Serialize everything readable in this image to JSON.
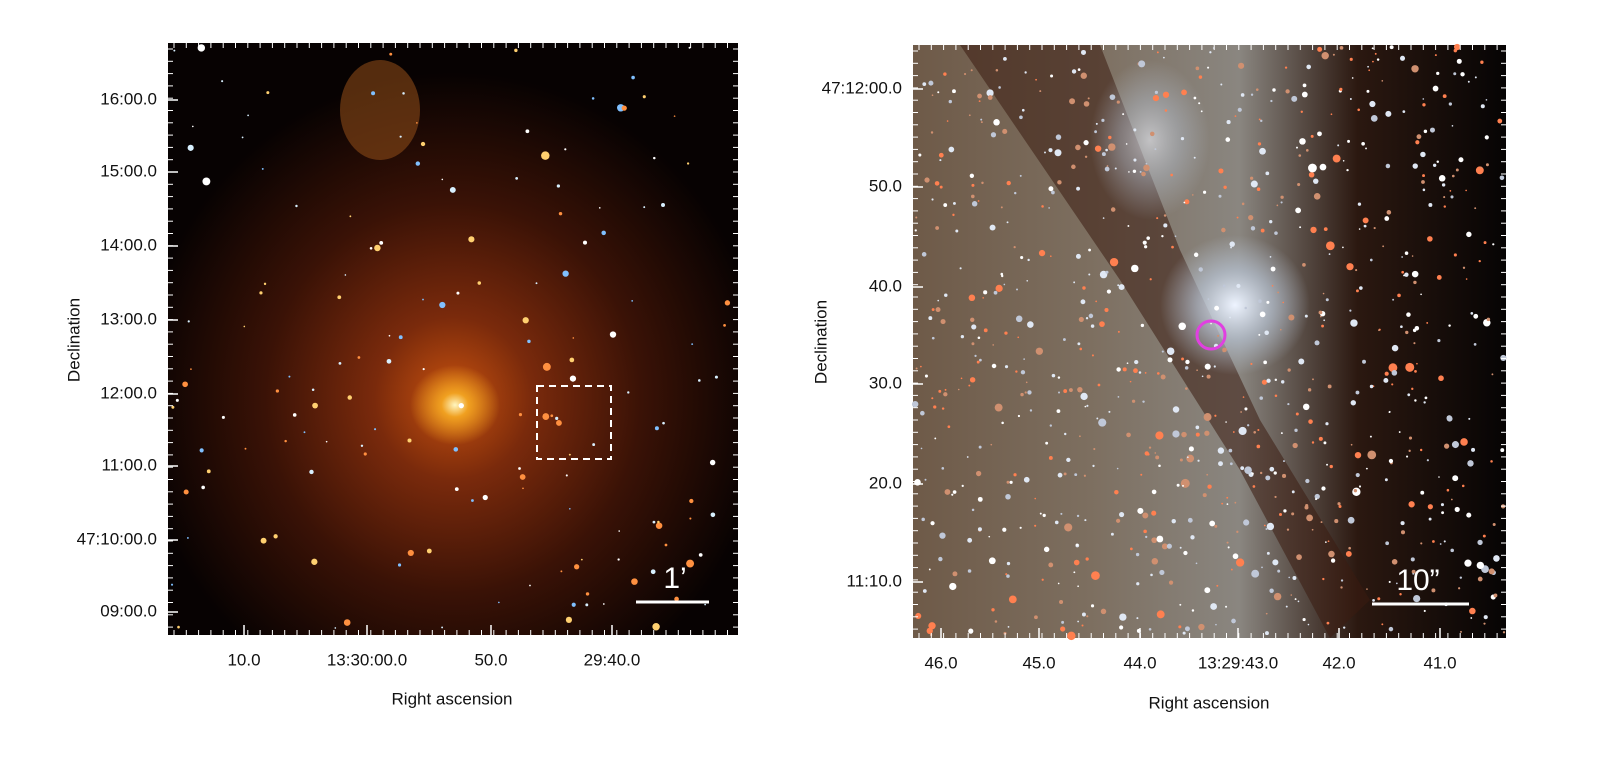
{
  "panels": [
    {
      "y_ticks": [
        "16:00.0",
        "15:00.0",
        "14:00.0",
        "13:00.0",
        "12:00.0",
        "11:00.0",
        "47:10:00.0",
        "09:00.0"
      ],
      "x_ticks": [
        "10.0",
        "13:30:00.0",
        "50.0",
        "29:40.0"
      ],
      "x_label": "Right ascension",
      "y_label": "Declination",
      "scale_label": "1’"
    },
    {
      "y_ticks": [
        "47:12:00.0",
        "50.0",
        "40.0",
        "30.0",
        "20.0",
        "11:10.0"
      ],
      "x_ticks": [
        "46.0",
        "45.0",
        "44.0",
        "13:29:43.0",
        "42.0",
        "41.0"
      ],
      "x_label": "Right ascension",
      "y_label": "Declination",
      "scale_label": "10”"
    }
  ]
}
